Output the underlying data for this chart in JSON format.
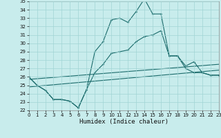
{
  "xlabel": "Humidex (Indice chaleur)",
  "xlim": [
    0,
    23
  ],
  "ylim": [
    22,
    35
  ],
  "xticks": [
    0,
    1,
    2,
    3,
    4,
    5,
    6,
    7,
    8,
    9,
    10,
    11,
    12,
    13,
    14,
    15,
    16,
    17,
    18,
    19,
    20,
    21,
    22,
    23
  ],
  "yticks": [
    22,
    23,
    24,
    25,
    26,
    27,
    28,
    29,
    30,
    31,
    32,
    33,
    34,
    35
  ],
  "bg_color": "#c8ecec",
  "line_color": "#1a6b6b",
  "grid_color": "#a0d4d4",
  "series": [
    {
      "x": [
        0,
        1,
        2,
        3,
        4,
        5,
        6,
        7,
        8,
        9,
        10,
        11,
        12,
        13,
        14,
        15,
        16,
        17,
        18,
        19,
        20,
        21,
        22,
        23
      ],
      "y": [
        26.0,
        25.0,
        24.4,
        23.3,
        23.3,
        23.1,
        22.3,
        24.5,
        29.0,
        30.2,
        32.8,
        33.0,
        32.5,
        33.8,
        35.3,
        33.5,
        33.5,
        28.5,
        28.5,
        27.0,
        26.5,
        26.5,
        26.2,
        26.2
      ],
      "marker": true,
      "lw": 0.8
    },
    {
      "x": [
        0,
        1,
        2,
        3,
        4,
        5,
        6,
        7,
        8,
        9,
        10,
        11,
        12,
        13,
        14,
        15,
        16,
        17,
        18,
        19,
        20,
        21,
        22,
        23
      ],
      "y": [
        26.0,
        25.0,
        24.4,
        23.3,
        23.3,
        23.1,
        22.3,
        24.5,
        26.5,
        27.5,
        28.8,
        29.0,
        29.2,
        30.2,
        30.8,
        31.0,
        31.5,
        28.5,
        28.5,
        27.3,
        27.8,
        26.5,
        26.2,
        26.2
      ],
      "marker": true,
      "lw": 0.8
    },
    {
      "x": [
        0,
        23
      ],
      "y": [
        25.7,
        27.5
      ],
      "marker": false,
      "lw": 0.8
    },
    {
      "x": [
        0,
        23
      ],
      "y": [
        24.8,
        26.8
      ],
      "marker": false,
      "lw": 0.8
    }
  ],
  "tick_fontsize": 5,
  "xlabel_fontsize": 6.5
}
